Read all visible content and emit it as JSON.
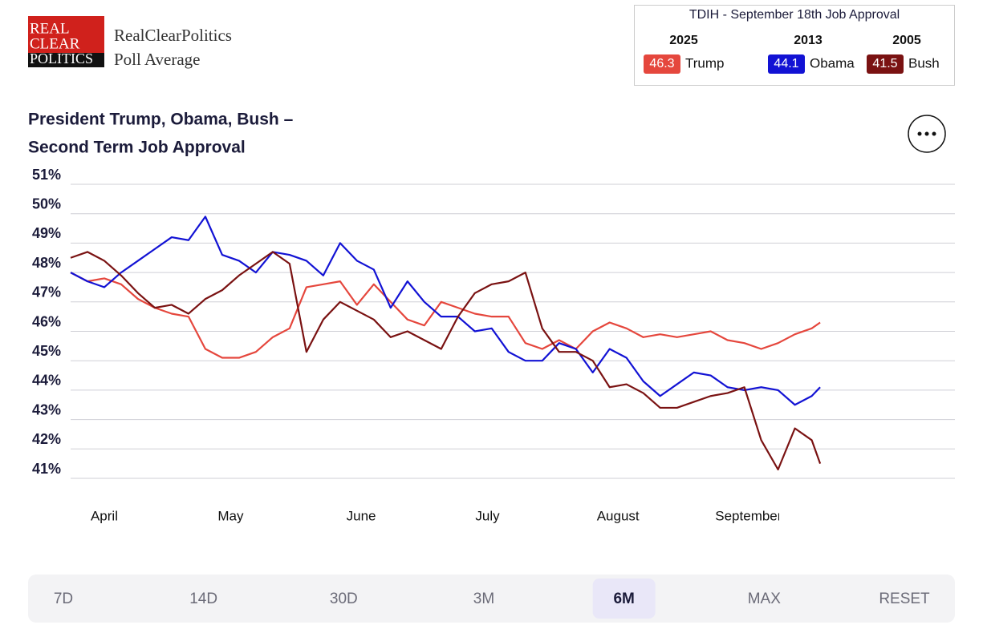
{
  "header": {
    "logo": [
      "REAL",
      "CLEAR",
      "POLITICS"
    ],
    "site": "RealClearPolitics",
    "subtitle": "Poll Average"
  },
  "tdih": {
    "title": "TDIH - September 18th Job Approval",
    "entries": [
      {
        "year": 2025,
        "value": 46.3
      },
      {
        "year": 2013,
        "value": 44.1
      },
      {
        "year": 2005,
        "value": 41.5
      }
    ]
  },
  "chart_data": {
    "type": "line",
    "title": [
      "President Trump, Obama, Bush –",
      "Second Term Job Approval"
    ],
    "x": [
      0,
      4,
      8,
      12,
      16,
      20,
      24,
      28,
      32,
      36,
      40,
      44,
      48,
      52,
      56,
      60,
      64,
      68,
      72,
      76,
      80,
      84,
      88,
      92,
      96,
      100,
      104,
      108,
      112,
      116,
      120,
      124,
      128,
      132,
      136,
      140,
      144,
      148,
      152,
      156,
      160,
      164,
      168,
      172,
      176,
      178
    ],
    "xlim": [
      0,
      210
    ],
    "xticks": [
      {
        "value": 8,
        "label": "April"
      },
      {
        "value": 38,
        "label": "May"
      },
      {
        "value": 69,
        "label": "June"
      },
      {
        "value": 99,
        "label": "July"
      },
      {
        "value": 130,
        "label": "August"
      },
      {
        "value": 161,
        "label": "September"
      }
    ],
    "ylim": [
      41,
      51
    ],
    "yticks": [
      {
        "value": 41,
        "label": "41%"
      },
      {
        "value": 42,
        "label": "42%"
      },
      {
        "value": 43,
        "label": "43%"
      },
      {
        "value": 44,
        "label": "44%"
      },
      {
        "value": 45,
        "label": "45%"
      },
      {
        "value": 46,
        "label": "46%"
      },
      {
        "value": 47,
        "label": "47%"
      },
      {
        "value": 48,
        "label": "48%"
      },
      {
        "value": 49,
        "label": "49%"
      },
      {
        "value": 50,
        "label": "50%"
      },
      {
        "value": 51,
        "label": "51%"
      }
    ],
    "grid": true,
    "series": [
      {
        "name": "Trump",
        "color": "#e5473d",
        "values": [
          48.0,
          47.7,
          47.8,
          47.6,
          47.1,
          46.8,
          46.6,
          46.5,
          45.4,
          45.1,
          45.1,
          45.3,
          45.8,
          46.1,
          47.5,
          47.6,
          47.7,
          46.9,
          47.6,
          47.0,
          46.4,
          46.2,
          47.0,
          46.8,
          46.6,
          46.5,
          46.5,
          45.6,
          45.4,
          45.7,
          45.4,
          46.0,
          46.3,
          46.1,
          45.8,
          45.9,
          45.8,
          45.9,
          46.0,
          45.7,
          45.6,
          45.4,
          45.6,
          45.9,
          46.1,
          46.3
        ]
      },
      {
        "name": "Obama",
        "color": "#1212d4",
        "values": [
          48.0,
          47.7,
          47.5,
          48.0,
          48.4,
          48.8,
          49.2,
          49.1,
          49.9,
          48.6,
          48.4,
          48.0,
          48.7,
          48.6,
          48.4,
          47.9,
          49.0,
          48.4,
          48.1,
          46.8,
          47.7,
          47.0,
          46.5,
          46.5,
          46.0,
          46.1,
          45.3,
          45.0,
          45.0,
          45.6,
          45.4,
          44.6,
          45.4,
          45.1,
          44.3,
          43.8,
          44.2,
          44.6,
          44.5,
          44.1,
          44.0,
          44.1,
          44.0,
          43.5,
          43.8,
          44.1
        ]
      },
      {
        "name": "Bush",
        "color": "#7a1212",
        "values": [
          48.5,
          48.7,
          48.4,
          47.9,
          47.3,
          46.8,
          46.9,
          46.6,
          47.1,
          47.4,
          47.9,
          48.3,
          48.7,
          48.3,
          45.3,
          46.4,
          47.0,
          46.7,
          46.4,
          45.8,
          46.0,
          45.7,
          45.4,
          46.5,
          47.3,
          47.6,
          47.7,
          48.0,
          46.1,
          45.3,
          45.3,
          45.0,
          44.1,
          44.2,
          43.9,
          43.4,
          43.4,
          43.6,
          43.8,
          43.9,
          44.1,
          42.3,
          41.3,
          42.7,
          42.3,
          41.5
        ]
      }
    ]
  },
  "range_buttons": {
    "options": [
      "7D",
      "14D",
      "30D",
      "3M",
      "6M",
      "MAX",
      "RESET"
    ],
    "active": "6M"
  }
}
